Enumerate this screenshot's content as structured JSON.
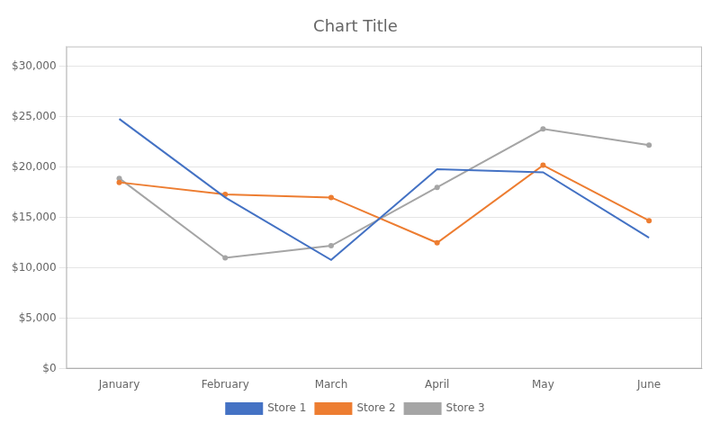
{
  "chart_data": {
    "type": "line",
    "title": "Chart Title",
    "categories": [
      "January",
      "February",
      "March",
      "April",
      "May",
      "June"
    ],
    "series": [
      {
        "name": "Store 1",
        "color": "#4472C4",
        "marker": "none",
        "line_style": "solid",
        "values": [
          24800,
          17000,
          10800,
          19800,
          19500,
          13000
        ]
      },
      {
        "name": "Store 2",
        "color": "#ED7D31",
        "marker": "circle",
        "line_style": "solid",
        "values": [
          18500,
          17300,
          17000,
          12500,
          20200,
          14700
        ]
      },
      {
        "name": "Store 3",
        "color": "#A5A5A5",
        "marker": "circle",
        "line_style": "solid",
        "values": [
          18900,
          11000,
          12200,
          18000,
          23800,
          22200
        ]
      }
    ],
    "ylim": [
      0,
      32000
    ],
    "yticks": [
      {
        "value": 0,
        "label": "$0"
      },
      {
        "value": 5000,
        "label": "$5,000"
      },
      {
        "value": 10000,
        "label": "$10,000"
      },
      {
        "value": 15000,
        "label": "$15,000"
      },
      {
        "value": 20000,
        "label": "$20,000"
      },
      {
        "value": 25000,
        "label": "$25,000"
      },
      {
        "value": 30000,
        "label": "$30,000"
      }
    ],
    "grid": true,
    "legend": "bottom"
  }
}
